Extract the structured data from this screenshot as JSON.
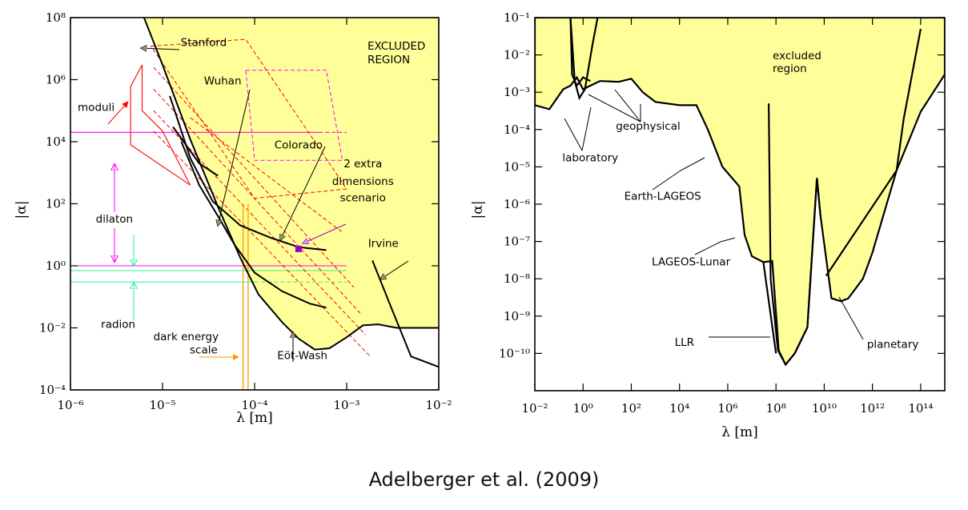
{
  "caption": "Adelberger et al. (2009)",
  "colors": {
    "excluded_fill": "#ffff99",
    "moduli": "#ff0000",
    "dilaton": "#ff00ff",
    "radion": "#33ee99",
    "dark_energy": "#ff9900",
    "extra_dimensions": "#9900cc",
    "curve": "#000000",
    "arrow_head": "#999966"
  },
  "chart_data": [
    {
      "type": "area",
      "xlabel": "λ [m]",
      "ylabel": "|α|",
      "x_scale": "log",
      "y_scale": "log",
      "xlim": [
        1e-06,
        0.01
      ],
      "ylim": [
        0.0001,
        100000000.0
      ],
      "x_ticks": [
        {
          "value": 1e-06,
          "label": "10⁻⁶"
        },
        {
          "value": 1e-05,
          "label": "10⁻⁵"
        },
        {
          "value": 0.0001,
          "label": "10⁻⁴"
        },
        {
          "value": 0.001,
          "label": "10⁻³"
        },
        {
          "value": 0.01,
          "label": "10⁻²"
        }
      ],
      "y_ticks": [
        {
          "value": 0.0001,
          "label": "10⁻⁴"
        },
        {
          "value": 0.01,
          "label": "10⁻²"
        },
        {
          "value": 1.0,
          "label": "10⁰"
        },
        {
          "value": 100.0,
          "label": "10²"
        },
        {
          "value": 10000.0,
          "label": "10⁴"
        },
        {
          "value": 1000000.0,
          "label": "10⁶"
        },
        {
          "value": 100000000.0,
          "label": "10⁸"
        }
      ],
      "region_label": [
        "EXCLUDED",
        "REGION"
      ],
      "excluded_boundary": [
        [
          6.3e-06,
          100000000.0
        ],
        [
          1e-05,
          3000000.0
        ],
        [
          2e-05,
          12000.0
        ],
        [
          4e-05,
          80
        ],
        [
          7e-05,
          1.8
        ],
        [
          0.00011,
          0.12
        ],
        [
          0.0002,
          0.015
        ],
        [
          0.0003,
          0.0045
        ],
        [
          0.00045,
          0.002
        ],
        [
          0.00065,
          0.0022
        ],
        [
          0.001,
          0.005
        ],
        [
          0.0015,
          0.012
        ],
        [
          0.0022,
          0.013
        ],
        [
          0.0035,
          0.01
        ],
        [
          0.01,
          0.01
        ]
      ],
      "curves": [
        {
          "name": "Stanford",
          "points": [
            [
              6.3e-06,
              100000000.0
            ],
            [
              1e-05,
              3000000.0
            ],
            [
              2e-05,
              12000.0
            ],
            [
              4e-05,
              80
            ],
            [
              7e-05,
              1.8
            ],
            [
              0.00011,
              0.12
            ],
            [
              0.0002,
              0.015
            ],
            [
              0.0003,
              0.0045
            ],
            [
              0.00045,
              0.002
            ],
            [
              0.00065,
              0.0022
            ],
            [
              0.001,
              0.005
            ],
            [
              0.0015,
              0.012
            ],
            [
              0.0022,
              0.013
            ],
            [
              0.0035,
              0.01
            ],
            [
              0.01,
              0.01
            ]
          ]
        },
        {
          "name": "Wuhan",
          "points": [
            [
              1.6e-05,
              10000.0
            ],
            [
              2.5e-05,
              400
            ],
            [
              4e-05,
              40
            ],
            [
              6e-05,
              5
            ],
            [
              0.0001,
              0.6
            ],
            [
              0.0002,
              0.15
            ],
            [
              0.0004,
              0.06
            ],
            [
              0.0006,
              0.045
            ]
          ]
        },
        {
          "name": "Colorado",
          "points": [
            [
              1.2e-05,
              300000.0
            ],
            [
              2e-05,
              3000.0
            ],
            [
              3.5e-05,
              120
            ],
            [
              7e-05,
              20
            ],
            [
              0.00015,
              8
            ],
            [
              0.0003,
              4
            ],
            [
              0.0006,
              3.2
            ]
          ]
        },
        {
          "name": "Eöt-Wash",
          "points": [
            [
              1.3e-05,
              30000.0
            ],
            [
              2.5e-05,
              2000.0
            ],
            [
              4e-05,
              800
            ]
          ]
        },
        {
          "name": "Irvine",
          "points": [
            [
              0.0019,
              1.5
            ],
            [
              0.003,
              0.05
            ],
            [
              0.005,
              0.0012
            ],
            [
              0.01,
              0.00055
            ]
          ]
        }
      ],
      "regions": [
        {
          "name": "moduli",
          "polygon": [
            [
              4.5e-06,
              600000.0
            ],
            [
              4.5e-06,
              8000.0
            ],
            [
              2e-05,
              400.0
            ],
            [
              1e-05,
              22000.0
            ],
            [
              6e-06,
              100000.0
            ],
            [
              6e-06,
              3000000.0
            ]
          ]
        },
        {
          "name": "2 extra dimensions scenario",
          "rhombi": [
            [
              [
                7.5e-06,
                12000000.0
              ],
              [
                8e-05,
                20000000.0
              ],
              [
                0.001,
                300.0
              ],
              [
                0.0001,
                150.0
              ]
            ],
            [
              [
                8e-05,
                2000000.0
              ],
              [
                0.0006,
                2000000.0
              ],
              [
                0.0009,
                2500.0
              ],
              [
                0.0001,
                2500.0
              ]
            ]
          ]
        }
      ],
      "dilaton_range": [
        1,
        20000.0
      ],
      "radion_range": [
        0.3,
        1
      ],
      "dark_energy_lambda": [
        7.5e-05,
        8.5e-05
      ],
      "extra_dimensions_point": [
        0.0003,
        3.5
      ],
      "annotations": [
        {
          "text": "Stanford",
          "x": 2.8e-05,
          "y": 12000000.0
        },
        {
          "text": "Wuhan",
          "x": 4.5e-05,
          "y": 700000.0
        },
        {
          "text": "Colorado",
          "x": 0.0003,
          "y": 6000.0
        },
        {
          "text": "Irvine",
          "x": 0.0025,
          "y": 4
        },
        {
          "text": "Eöt-Wash",
          "x": 0.00033,
          "y": 0.001
        },
        {
          "text": "moduli",
          "x": 1.9e-06,
          "y": 100000.0
        },
        {
          "text": "dilaton",
          "x": 3e-06,
          "y": 25.0
        },
        {
          "text": "radion",
          "x": 3.3e-06,
          "y": 0.01
        },
        {
          "text": "dark energy",
          "x": 1.8e-05,
          "y": 0.004
        },
        {
          "text": "scale",
          "x": 2.8e-05,
          "y": 0.0015
        },
        {
          "text": "2 extra",
          "x": 0.0015,
          "y": 1500.0
        },
        {
          "text": "dimensions",
          "x": 0.0015,
          "y": 400.0
        },
        {
          "text": "scenario",
          "x": 0.0015,
          "y": 120.0
        }
      ]
    },
    {
      "type": "area",
      "xlabel": "λ [m]",
      "ylabel": "|α|",
      "x_scale": "log",
      "y_scale": "log",
      "xlim": [
        0.01,
        1000000000000000.0
      ],
      "ylim": [
        1e-11,
        0.1
      ],
      "x_ticks": [
        {
          "value": 0.01,
          "label": "10⁻²"
        },
        {
          "value": 1.0,
          "label": "10⁰"
        },
        {
          "value": 100.0,
          "label": "10²"
        },
        {
          "value": 10000.0,
          "label": "10⁴"
        },
        {
          "value": 1000000.0,
          "label": "10⁶"
        },
        {
          "value": 100000000.0,
          "label": "10⁸"
        },
        {
          "value": 10000000000.0,
          "label": "10¹⁰"
        },
        {
          "value": 1000000000000.0,
          "label": "10¹²"
        },
        {
          "value": 100000000000000.0,
          "label": "10¹⁴"
        }
      ],
      "y_ticks": [
        {
          "value": 1e-10,
          "label": "10⁻¹⁰"
        },
        {
          "value": 1e-09,
          "label": "10⁻⁹"
        },
        {
          "value": 1e-08,
          "label": "10⁻⁸"
        },
        {
          "value": 1e-07,
          "label": "10⁻⁷"
        },
        {
          "value": 1e-06,
          "label": "10⁻⁶"
        },
        {
          "value": 1e-05,
          "label": "10⁻⁵"
        },
        {
          "value": 0.0001,
          "label": "10⁻⁴"
        },
        {
          "value": 0.001,
          "label": "10⁻³"
        },
        {
          "value": 0.01,
          "label": "10⁻²"
        },
        {
          "value": 0.1,
          "label": "10⁻¹"
        }
      ],
      "region_label": [
        "excluded",
        "region"
      ],
      "excluded_boundary": [
        [
          0.01,
          0.00045
        ],
        [
          0.04,
          0.00035
        ],
        [
          0.15,
          0.0012
        ],
        [
          0.3,
          0.0015
        ],
        [
          0.55,
          0.0025
        ],
        [
          1,
          0.0012
        ],
        [
          2,
          0.0015
        ],
        [
          5,
          0.002
        ],
        [
          30,
          0.0019
        ],
        [
          100,
          0.0023
        ],
        [
          300,
          0.001
        ],
        [
          1000.0,
          0.00055
        ],
        [
          10000.0,
          0.00045
        ],
        [
          50000.0,
          0.00045
        ],
        [
          150000.0,
          0.0001
        ],
        [
          600000.0,
          1e-05
        ],
        [
          3000000.0,
          3e-06
        ],
        [
          5000000.0,
          1.5e-07
        ],
        [
          10000000.0,
          4e-08
        ],
        [
          30000000.0,
          2.8e-08
        ],
        [
          70000000.0,
          3e-08
        ],
        [
          130000000.0,
          1.2e-10
        ],
        [
          250000000.0,
          5e-11
        ],
        [
          600000000.0,
          1e-10
        ],
        [
          2000000000.0,
          5e-10
        ],
        [
          5000000000.0,
          5e-06
        ],
        [
          7000000000.0,
          5e-07
        ],
        [
          20000000000.0,
          3e-09
        ],
        [
          50000000000.0,
          2.5e-09
        ],
        [
          100000000000.0,
          3e-09
        ],
        [
          400000000000.0,
          1e-08
        ],
        [
          1000000000000.0,
          5e-08
        ],
        [
          10000000000000.0,
          8e-06
        ],
        [
          100000000000000.0,
          0.0003
        ],
        [
          1000000000000000.0,
          0.003
        ]
      ],
      "annotations": [
        {
          "text": "geophysical",
          "x": 500.0,
          "y": 0.0001
        },
        {
          "text": "laboratory",
          "x": 2.0,
          "y": 1.4e-05
        },
        {
          "text": "Earth-LAGEOS",
          "x": 2000.0,
          "y": 1.3e-06
        },
        {
          "text": "LAGEOS-Lunar",
          "x": 30000.0,
          "y": 2.3e-08
        },
        {
          "text": "LLR",
          "x": 16000.0,
          "y": 1.6e-10
        },
        {
          "text": "planetary",
          "x": 7000000000000.0,
          "y": 1.4e-10
        }
      ]
    }
  ]
}
